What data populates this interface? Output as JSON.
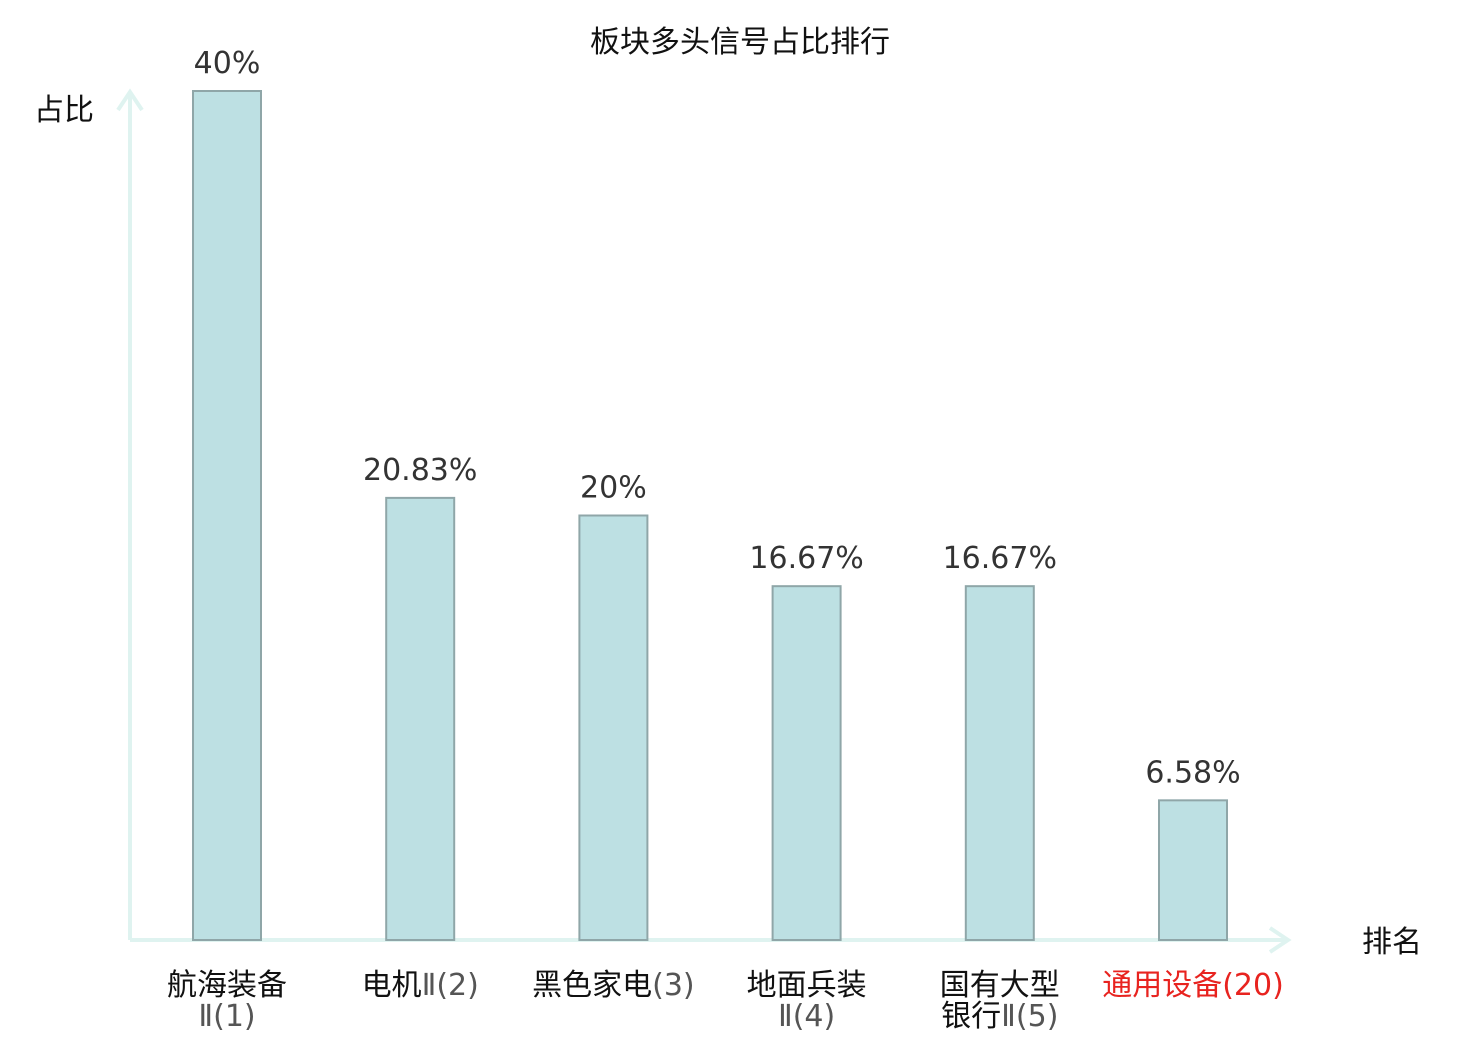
{
  "chart_data": {
    "type": "bar",
    "title": "板块多头信号占比排行",
    "xlabel": "排名",
    "ylabel": "占比",
    "ylim": [
      0,
      40
    ],
    "grid": false,
    "categories": [
      {
        "name_lines": [
          "航海装备"
        ],
        "rank_lines": [
          "Ⅱ(1)"
        ],
        "highlight": false
      },
      {
        "name_lines": [
          "电机"
        ],
        "rank_lines": [
          "Ⅱ(2)"
        ],
        "highlight": false
      },
      {
        "name_lines": [
          "黑色家电"
        ],
        "rank_lines": [
          "(3)"
        ],
        "highlight": false
      },
      {
        "name_lines": [
          "地面兵装"
        ],
        "rank_lines": [
          "Ⅱ(4)"
        ],
        "highlight": false
      },
      {
        "name_lines": [
          "国有大型",
          "银行"
        ],
        "rank_lines": [
          "",
          "Ⅱ(5)"
        ],
        "highlight": false
      },
      {
        "name_lines": [
          "通用设备"
        ],
        "rank_lines": [
          "(20)"
        ],
        "highlight": true
      }
    ],
    "values": [
      40,
      20.83,
      20,
      16.67,
      16.67,
      6.58
    ],
    "value_labels": [
      "40%",
      "20.83%",
      "20%",
      "16.67%",
      "16.67%",
      "6.58%"
    ],
    "colors": {
      "bar_fill": "#bde0e3",
      "bar_stroke": "#8fa6a8",
      "axis": "#dff3f0",
      "highlight": "#e8231f"
    }
  }
}
